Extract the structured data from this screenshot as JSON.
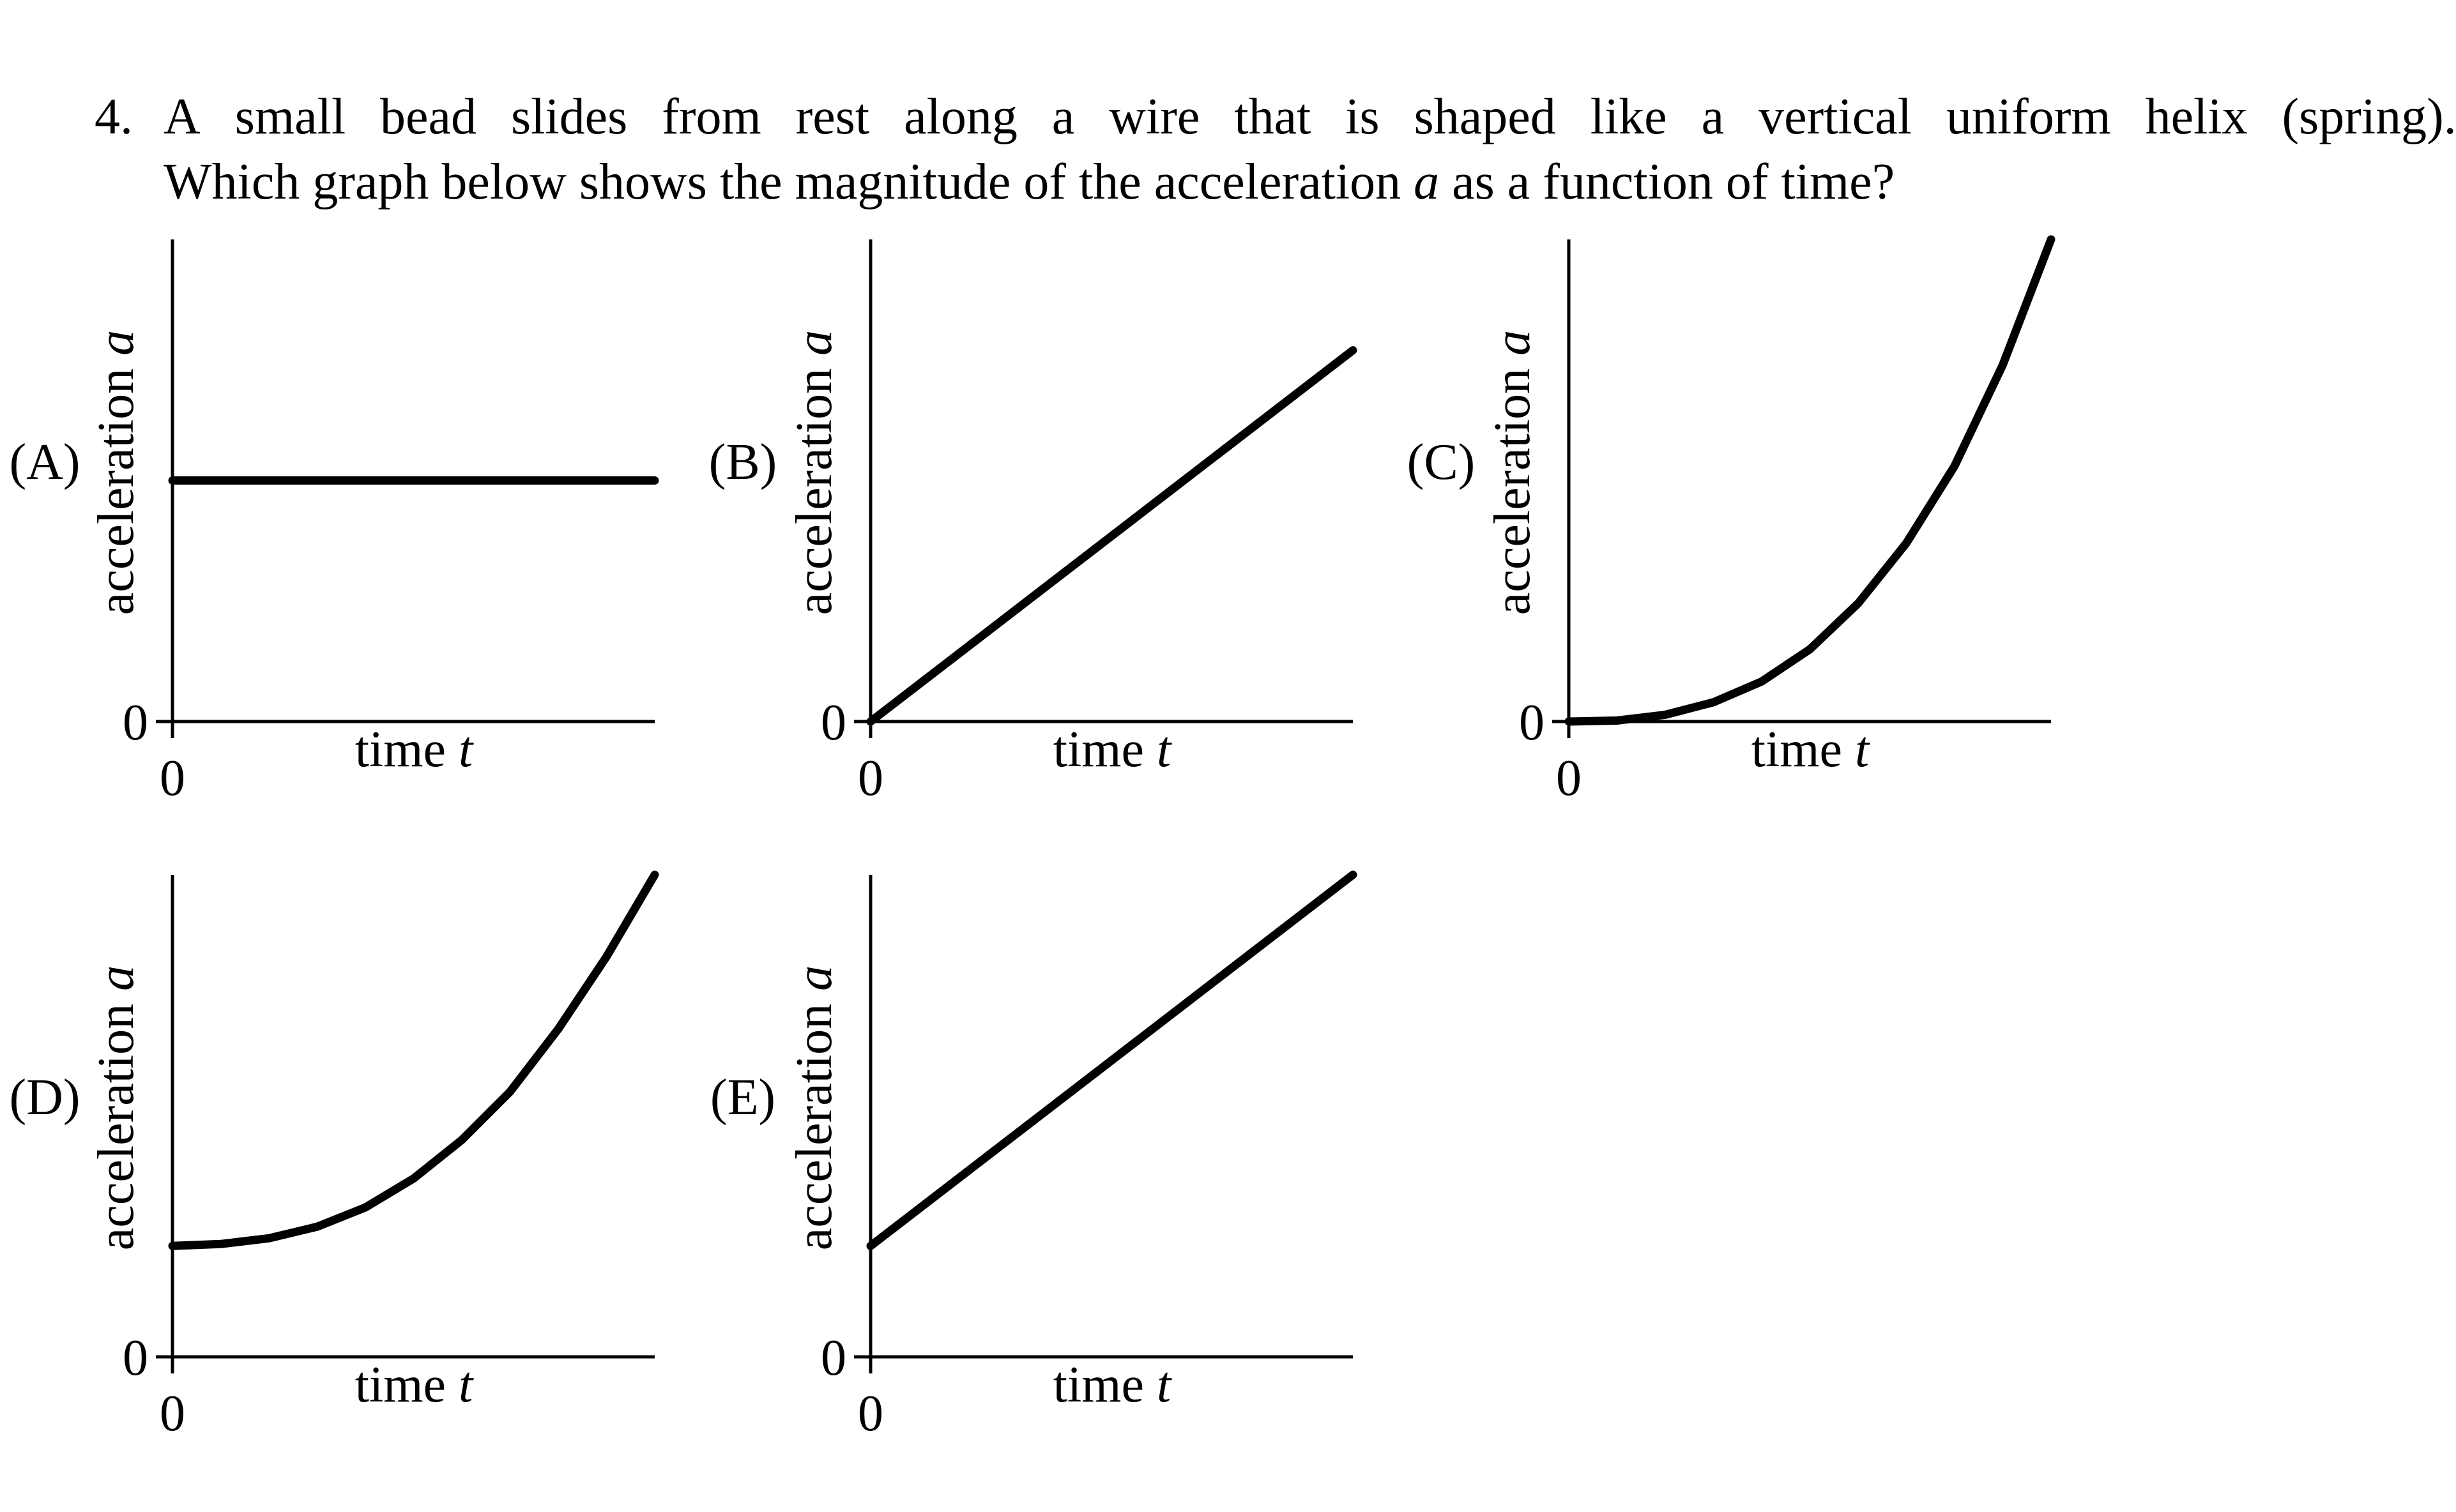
{
  "question": {
    "number": "4.",
    "line1_words": [
      "A",
      "small",
      "bead",
      "slides",
      "from",
      "rest",
      "along",
      "a",
      "wire",
      "that",
      "is",
      "shaped",
      "like",
      "a",
      "vertical",
      "uniform",
      "helix",
      "(spring)."
    ],
    "line2_pre": "Which graph below shows the magnitude of the acceleration ",
    "line2_var": "a",
    "line2_post": " as a function of time?"
  },
  "chart_data": [
    {
      "label": "(A)",
      "type": "line",
      "title": "",
      "xlabel": "time t",
      "ylabel": "acceleration a",
      "x_tick_labels": [
        "0"
      ],
      "y_tick_labels": [
        "0"
      ],
      "xlim": [
        0,
        1
      ],
      "ylim": [
        0,
        1
      ],
      "x": [
        0,
        1
      ],
      "y": [
        0.5,
        0.5
      ]
    },
    {
      "label": "(B)",
      "type": "line",
      "title": "",
      "xlabel": "time t",
      "ylabel": "acceleration a",
      "x_tick_labels": [
        "0"
      ],
      "y_tick_labels": [
        "0"
      ],
      "xlim": [
        0,
        1
      ],
      "ylim": [
        0,
        1
      ],
      "x": [
        0,
        1
      ],
      "y": [
        0,
        0.77
      ]
    },
    {
      "label": "(C)",
      "type": "line",
      "title": "",
      "xlabel": "time t",
      "ylabel": "acceleration a",
      "x_tick_labels": [
        "0"
      ],
      "y_tick_labels": [
        "0"
      ],
      "xlim": [
        0,
        1
      ],
      "ylim": [
        0,
        1
      ],
      "x": [
        0,
        0.1,
        0.2,
        0.3,
        0.4,
        0.5,
        0.6,
        0.7,
        0.8,
        0.9,
        1
      ],
      "y": [
        0,
        0.002,
        0.014,
        0.04,
        0.083,
        0.15,
        0.245,
        0.37,
        0.53,
        0.74,
        1.0
      ]
    },
    {
      "label": "(D)",
      "type": "line",
      "title": "",
      "xlabel": "time t",
      "ylabel": "acceleration a",
      "x_tick_labels": [
        "0"
      ],
      "y_tick_labels": [
        "0"
      ],
      "xlim": [
        0,
        1
      ],
      "ylim": [
        0,
        1
      ],
      "x": [
        0,
        0.1,
        0.2,
        0.3,
        0.4,
        0.5,
        0.6,
        0.7,
        0.8,
        0.9,
        1
      ],
      "y": [
        0.23,
        0.234,
        0.246,
        0.27,
        0.31,
        0.37,
        0.45,
        0.55,
        0.68,
        0.83,
        1.0
      ]
    },
    {
      "label": "(E)",
      "type": "line",
      "title": "",
      "xlabel": "time t",
      "ylabel": "acceleration a",
      "x_tick_labels": [
        "0"
      ],
      "y_tick_labels": [
        "0"
      ],
      "xlim": [
        0,
        1
      ],
      "ylim": [
        0,
        1
      ],
      "x": [
        0,
        1
      ],
      "y": [
        0.23,
        1.0
      ]
    }
  ]
}
